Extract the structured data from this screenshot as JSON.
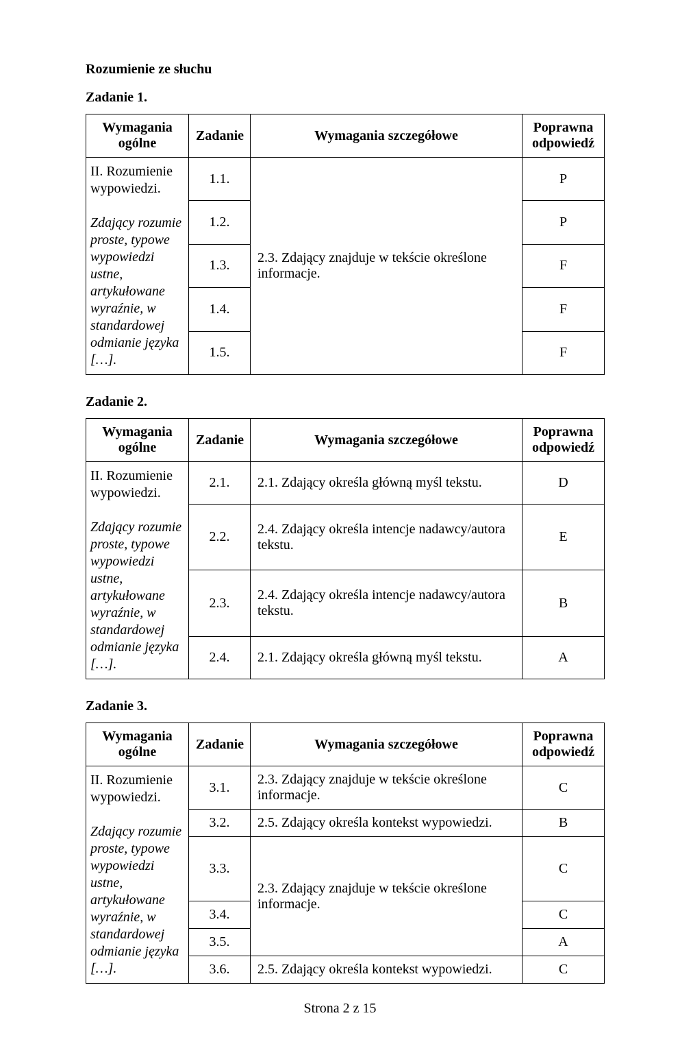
{
  "section_title": "Rozumienie ze słuchu",
  "tasks": [
    {
      "title": "Zadanie 1.",
      "headers": {
        "col1": "Wymagania ogólne",
        "col2": "Zadanie",
        "col3": "Wymagania szczegółowe",
        "col4": "Poprawna odpowiedź"
      },
      "left_block_html": "II. Rozumienie wypowiedzi.<br><br><span class=\"italic\">Zdający rozumie proste, typowe wypowiedzi ustne, artykułowane wyraźnie, w standardowej odmianie języka […].</span>",
      "shared_detail": "2.3. Zdający znajduje w tekście określone informacje.",
      "rows": [
        {
          "num": "1.1.",
          "answer": "P"
        },
        {
          "num": "1.2.",
          "answer": "P"
        },
        {
          "num": "1.3.",
          "answer": "F"
        },
        {
          "num": "1.4.",
          "answer": "F"
        },
        {
          "num": "1.5.",
          "answer": "F"
        }
      ]
    },
    {
      "title": "Zadanie 2.",
      "headers": {
        "col1": "Wymagania ogólne",
        "col2": "Zadanie",
        "col3": "Wymagania szczegółowe",
        "col4": "Poprawna odpowiedź"
      },
      "left_block_html": "II. Rozumienie wypowiedzi.<br><br><span class=\"italic\">Zdający rozumie proste, typowe wypowiedzi ustne, artykułowane wyraźnie, w standardowej odmianie języka […].</span>",
      "rows": [
        {
          "num": "2.1.",
          "detail": "2.1. Zdający określa główną myśl tekstu.",
          "answer": "D"
        },
        {
          "num": "2.2.",
          "detail": "2.4. Zdający określa intencje nadawcy/autora tekstu.",
          "answer": "E"
        },
        {
          "num": "2.3.",
          "detail": "2.4. Zdający określa intencje nadawcy/autora tekstu.",
          "answer": "B"
        },
        {
          "num": "2.4.",
          "detail": "2.1. Zdający określa główną myśl tekstu.",
          "answer": "A"
        }
      ]
    },
    {
      "title": "Zadanie 3.",
      "headers": {
        "col1": "Wymagania ogólne",
        "col2": "Zadanie",
        "col3": "Wymagania szczegółowe",
        "col4": "Poprawna odpowiedź"
      },
      "left_block_html": "II. Rozumienie wypowiedzi.<br><br><span class=\"italic\">Zdający rozumie proste, typowe wypowiedzi ustne, artykułowane wyraźnie, w standardowej odmianie języka […].</span>",
      "mid_shared_detail": "2.3. Zdający znajduje w tekście określone informacje.",
      "rows": [
        {
          "num": "3.1.",
          "detail": "2.3. Zdający znajduje w tekście określone informacje.",
          "answer": "C"
        },
        {
          "num": "3.2.",
          "detail": "2.5. Zdający określa kontekst wypowiedzi.",
          "answer": "B"
        },
        {
          "num": "3.3.",
          "answer": "C"
        },
        {
          "num": "3.4.",
          "answer": "C"
        },
        {
          "num": "3.5.",
          "answer": "A"
        },
        {
          "num": "3.6.",
          "detail": "2.5. Zdający określa kontekst wypowiedzi.",
          "answer": "C"
        }
      ]
    }
  ],
  "footer": "Strona 2 z 15"
}
